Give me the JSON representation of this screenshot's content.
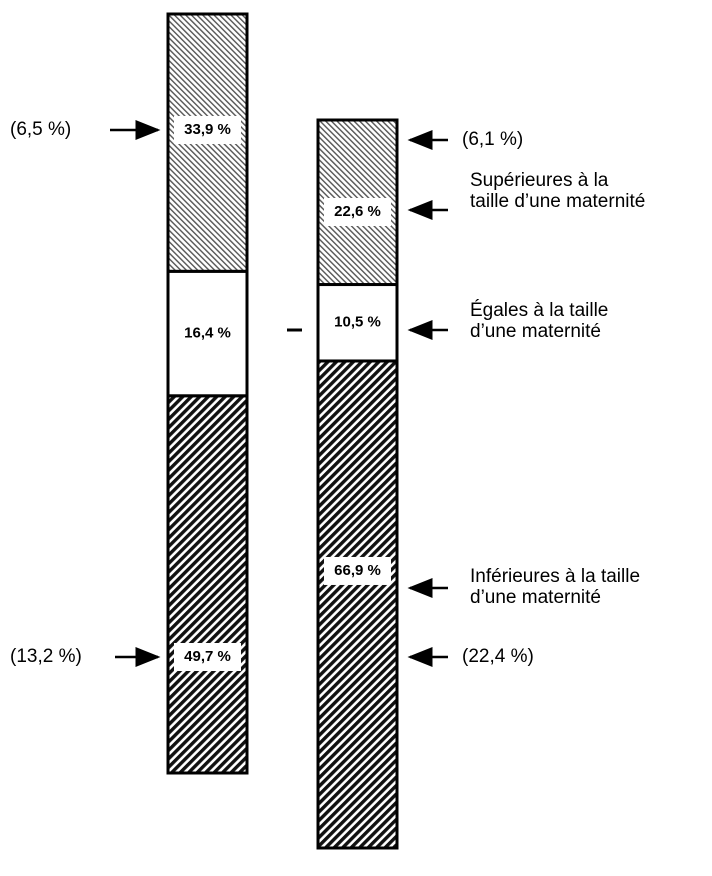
{
  "chart_data": {
    "type": "stacked_bar",
    "categories": [
      null,
      null
    ],
    "series": [
      {
        "name": "Inférieures à la taille\nd’une maternité",
        "values": [
          49.7,
          66.9
        ],
        "value_labels": [
          "49,7 %",
          "66,9 %"
        ]
      },
      {
        "name": "Égales à la taille\nd’une maternité",
        "values": [
          16.4,
          10.5
        ],
        "value_labels": [
          "16,4 %",
          "10,5 %"
        ]
      },
      {
        "name": "Supérieures à la\ntaille d’une maternité",
        "values": [
          33.9,
          22.6
        ],
        "value_labels": [
          "33,9 %",
          "22,6 %"
        ]
      }
    ],
    "annotations": [
      "(6,5 %)",
      "(13,2 %)",
      "(6,1 %)",
      "(22,4 %)"
    ]
  }
}
